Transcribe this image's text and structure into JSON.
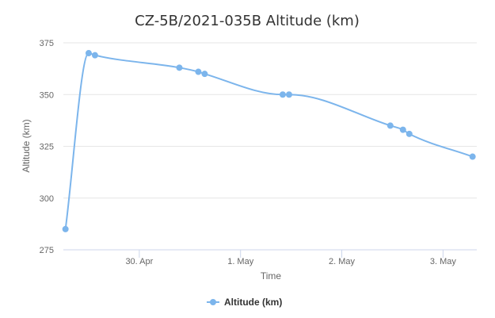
{
  "chart_data": {
    "type": "line",
    "title": "CZ-5B/2021-035B Altitude (km)",
    "xlabel": "Time",
    "ylabel": "Altitude (km)",
    "ylim": [
      275,
      375
    ],
    "yticks": [
      275,
      300,
      325,
      350,
      375
    ],
    "xlim": [
      "2021-04-29T06:00",
      "2021-05-03T08:00"
    ],
    "xticks": [
      {
        "date": "2021-04-30",
        "label": "30. Apr"
      },
      {
        "date": "2021-05-01",
        "label": "1. May"
      },
      {
        "date": "2021-05-02",
        "label": "2. May"
      },
      {
        "date": "2021-05-03",
        "label": "3. May"
      }
    ],
    "grid": true,
    "legend_position": "bottom",
    "color": "#7cb5ec",
    "series": [
      {
        "name": "Altitude (km)",
        "points": [
          {
            "x": "2021-04-29T06:30",
            "y": 285
          },
          {
            "x": "2021-04-29T12:00",
            "y": 370
          },
          {
            "x": "2021-04-29T13:30",
            "y": 369
          },
          {
            "x": "2021-04-30T09:30",
            "y": 363
          },
          {
            "x": "2021-04-30T14:00",
            "y": 361
          },
          {
            "x": "2021-04-30T15:30",
            "y": 360
          },
          {
            "x": "2021-05-01T10:00",
            "y": 350
          },
          {
            "x": "2021-05-01T11:30",
            "y": 350
          },
          {
            "x": "2021-05-02T11:30",
            "y": 335
          },
          {
            "x": "2021-05-02T14:30",
            "y": 333
          },
          {
            "x": "2021-05-02T16:00",
            "y": 331
          },
          {
            "x": "2021-05-03T07:00",
            "y": 320
          }
        ]
      }
    ]
  }
}
